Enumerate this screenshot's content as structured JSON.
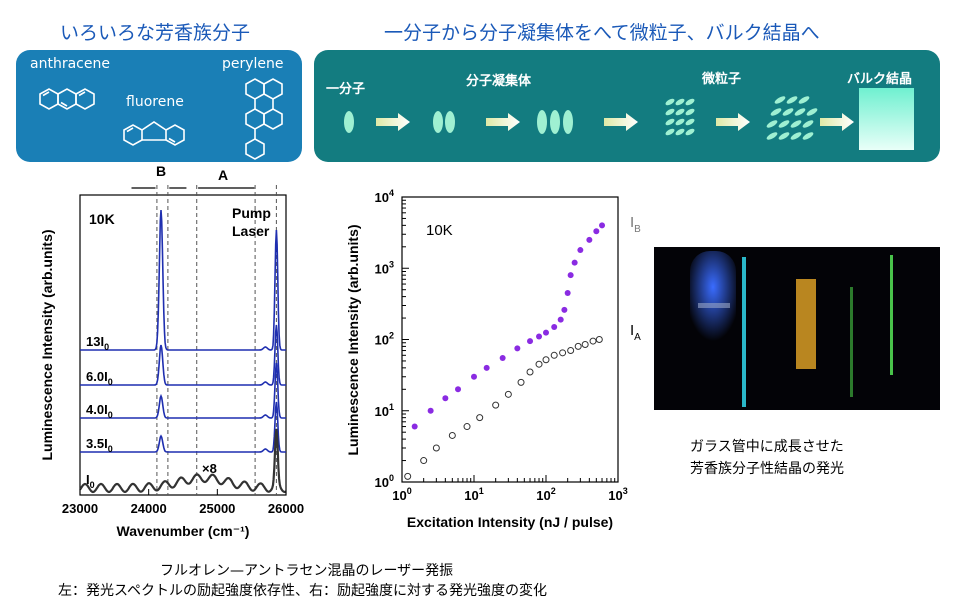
{
  "header_left": "いろいろな芳香族分子",
  "header_right": "一分子から分子凝集体をへて微粒子、バルク結晶へ",
  "molecules": [
    "anthracene",
    "fluorene",
    "perylene"
  ],
  "stages": [
    "一分子",
    "分子凝集体",
    "微粒子",
    "バルク結晶"
  ],
  "colors": {
    "left_panel": "#1a7fb6",
    "right_panel": "#137c80",
    "heading": "#1a59b8",
    "spectrum": "#1f2fb0",
    "I_B_points": "#8a2be2"
  },
  "chart_data": [
    {
      "type": "line",
      "xlabel": "Wavenumber (cm⁻¹)",
      "ylabel": "Luminescence Intensity (arb.units)",
      "xlim": [
        23000,
        26000
      ],
      "xticks": [
        "23000",
        "24000",
        "25000",
        "26000"
      ],
      "temperature_label": "10K",
      "pump_label_1": "Pump",
      "pump_label_2": "Laser",
      "region_labels": [
        "B",
        "A"
      ],
      "scale_note": "×8",
      "series": [
        {
          "name": "13I0",
          "label_main": "13I",
          "label_sub": "0",
          "peaks": [
            24180,
            25860
          ]
        },
        {
          "name": "6.0I0",
          "label_main": "6.0I",
          "label_sub": "0",
          "peaks": [
            24180,
            25860
          ]
        },
        {
          "name": "4.0I0",
          "label_main": "4.0I",
          "label_sub": "0",
          "peaks": [
            24180,
            25860
          ]
        },
        {
          "name": "3.5I0",
          "label_main": "3.5I",
          "label_sub": "0",
          "peaks": [
            24180,
            25860
          ]
        },
        {
          "name": "I0",
          "label_main": "I",
          "label_sub": "0",
          "peaks": [
            25860
          ]
        }
      ]
    },
    {
      "type": "scatter",
      "log_x": true,
      "log_y": true,
      "xlabel": "Excitation Intensity (nJ / pulse)",
      "ylabel": "Luminescence Intensity (arb.units)",
      "xlim": [
        1,
        1000
      ],
      "ylim": [
        1,
        10000
      ],
      "temperature_label": "10K",
      "series": [
        {
          "name": "I_B",
          "label_main": "I",
          "label_sub": "B",
          "x": [
            1.5,
            2.5,
            4,
            6,
            10,
            15,
            25,
            40,
            60,
            80,
            100,
            130,
            160,
            180,
            200,
            220,
            250,
            300,
            400,
            500,
            600
          ],
          "y": [
            6,
            10,
            15,
            20,
            30,
            40,
            55,
            75,
            95,
            110,
            125,
            150,
            190,
            260,
            450,
            800,
            1200,
            1800,
            2500,
            3300,
            4000
          ]
        },
        {
          "name": "I_A",
          "label_main": "I",
          "label_sub": "A",
          "x": [
            1.2,
            2,
            3,
            5,
            8,
            12,
            20,
            30,
            45,
            60,
            80,
            100,
            130,
            170,
            220,
            280,
            350,
            450,
            550
          ],
          "y": [
            1.2,
            2,
            3,
            4.5,
            6,
            8,
            12,
            17,
            25,
            35,
            45,
            52,
            60,
            65,
            70,
            80,
            85,
            95,
            100
          ]
        }
      ]
    }
  ],
  "photo_caption": [
    "ガラス管中に成長させた",
    "芳香族分子性結晶の発光"
  ],
  "figure_caption": [
    "フルオレン—アントラセン混晶のレーザー発振",
    "左：発光スペクトルの励起強度依存性、右：励起強度に対する発光強度の変化"
  ]
}
